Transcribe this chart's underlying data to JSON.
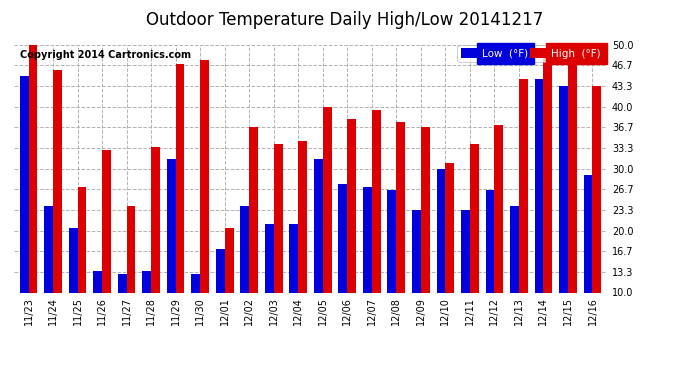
{
  "title": "Outdoor Temperature Daily High/Low 20141217",
  "copyright": "Copyright 2014 Cartronics.com",
  "dates": [
    "11/23",
    "11/24",
    "11/25",
    "11/26",
    "11/27",
    "11/28",
    "11/29",
    "11/30",
    "12/01",
    "12/02",
    "12/03",
    "12/04",
    "12/05",
    "12/06",
    "12/07",
    "12/08",
    "12/09",
    "12/10",
    "12/11",
    "12/12",
    "12/13",
    "12/14",
    "12/15",
    "12/16"
  ],
  "low": [
    45.0,
    24.0,
    20.5,
    13.5,
    13.0,
    13.5,
    31.5,
    13.0,
    17.0,
    24.0,
    21.0,
    21.0,
    31.5,
    27.5,
    27.0,
    26.5,
    23.3,
    30.0,
    23.3,
    26.5,
    24.0,
    44.5,
    43.3,
    29.0
  ],
  "high": [
    50.0,
    46.0,
    27.0,
    33.0,
    24.0,
    33.5,
    47.0,
    47.5,
    20.5,
    36.7,
    34.0,
    34.5,
    40.0,
    38.0,
    39.5,
    37.5,
    36.7,
    31.0,
    34.0,
    37.0,
    44.5,
    49.0,
    46.7,
    43.3
  ],
  "low_color": "#0000dd",
  "high_color": "#dd0000",
  "bg_color": "#ffffff",
  "grid_color": "#aaaaaa",
  "ylim_min": 10.0,
  "ylim_max": 50.0,
  "yticks": [
    10.0,
    13.3,
    16.7,
    20.0,
    23.3,
    26.7,
    30.0,
    33.3,
    36.7,
    40.0,
    43.3,
    46.7,
    50.0
  ],
  "legend_low_label": "Low  (°F)",
  "legend_high_label": "High  (°F)",
  "title_fontsize": 12,
  "tick_fontsize": 7,
  "copyright_fontsize": 7
}
